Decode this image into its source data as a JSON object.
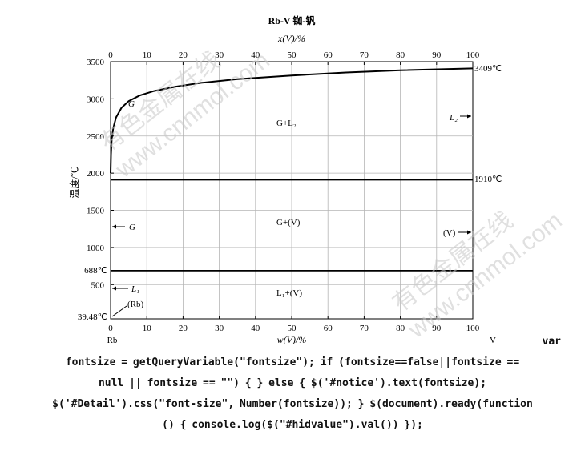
{
  "chart_data": {
    "type": "line",
    "title": "Rb-V  铷-钒",
    "top_axis": {
      "label": "x(V)/%",
      "ticks": [
        "0",
        "10",
        "20",
        "30",
        "40",
        "50",
        "60",
        "70",
        "80",
        "90",
        "100"
      ]
    },
    "bottom_axis": {
      "label": "w(V)/%",
      "ticks": [
        "0",
        "10",
        "20",
        "30",
        "40",
        "50",
        "60",
        "70",
        "80",
        "90",
        "100"
      ],
      "tick_values": [
        0,
        10,
        20,
        30,
        40,
        50,
        60,
        70,
        80,
        90,
        100
      ],
      "end_left": "Rb",
      "end_right": "V"
    },
    "y_axis": {
      "label": "温度/℃",
      "ticks": [
        "3500",
        "3000",
        "2500",
        "2000",
        "1500",
        "1000",
        "500"
      ],
      "tick_values": [
        3500,
        3000,
        2500,
        2000,
        1500,
        1000,
        500
      ],
      "ylim": [
        39.48,
        3500
      ]
    },
    "xlim": [
      0,
      100
    ],
    "grid": true,
    "series": [
      {
        "name": "liquidus",
        "x": [
          0,
          0.1,
          0.3,
          0.7,
          1.5,
          3,
          5,
          8,
          12,
          18,
          25,
          35,
          50,
          65,
          80,
          100
        ],
        "y": [
          2000,
          2250,
          2450,
          2600,
          2750,
          2880,
          2970,
          3045,
          3105,
          3165,
          3215,
          3265,
          3315,
          3355,
          3385,
          3409
        ]
      },
      {
        "name": "isotherm-1910",
        "x": [
          0,
          100
        ],
        "y": [
          1910,
          1910
        ]
      },
      {
        "name": "isotherm-688",
        "x": [
          0,
          100
        ],
        "y": [
          688,
          688
        ]
      }
    ],
    "special_y_labels": [
      {
        "text": "688℃",
        "y": 688
      },
      {
        "text": "39.48℃",
        "y": 39.48
      }
    ],
    "right_labels": [
      {
        "text": "3409℃",
        "y": 3409
      },
      {
        "text": "1910℃",
        "y": 1910
      }
    ],
    "regions": [
      {
        "text": "G",
        "x": 5,
        "y": 3100
      },
      {
        "text": "G+L₂",
        "x": 50,
        "y": 2650
      },
      {
        "text": "G+(V)",
        "x": 50,
        "y": 1290
      },
      {
        "text": "L₁+(V)",
        "x": 50,
        "y": 340
      }
    ],
    "arrow_labels": [
      {
        "text": "L₂",
        "y": 2700,
        "side": "right"
      },
      {
        "text": "G",
        "y": 1250,
        "side": "left"
      },
      {
        "text": "(V)",
        "y": 1190,
        "side": "right"
      },
      {
        "text": "L₁",
        "y": 460,
        "side": "left"
      },
      {
        "text": "(Rb)",
        "y": 130,
        "side": "left"
      }
    ],
    "watermarks": [
      "有色金属在线",
      "www.cnnmol.com"
    ]
  },
  "code_lines": [
    "var",
    "fontsize = getQueryVariable(\"fontsize\"); if (fontsize==false||fontsize ==",
    "null || fontsize == \"\") { } else { $('#notice').text(fontsize);",
    "$('#Detail').css(\"font-size\", Number(fontsize)); } $(document).ready(function",
    "() { console.log($(\"#hidvalue\").val()) });"
  ]
}
